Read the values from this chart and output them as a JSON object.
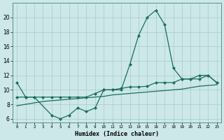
{
  "xlabel": "Humidex (Indice chaleur)",
  "background_color": "#cce8e8",
  "grid_color": "#aacaca",
  "line_color": "#1a6e5e",
  "x_values": [
    0,
    1,
    2,
    3,
    4,
    5,
    6,
    7,
    8,
    9,
    10,
    11,
    12,
    13,
    14,
    15,
    16,
    17,
    18,
    19,
    20,
    21,
    22,
    23
  ],
  "line1_y": [
    11,
    9,
    9,
    null,
    6.5,
    6.0,
    6.5,
    7.5,
    7.0,
    7.5,
    10.0,
    10.0,
    10.0,
    13.5,
    17.5,
    20.0,
    21.0,
    19.0,
    13.0,
    11.5,
    11.5,
    12.0,
    12.0,
    11.0
  ],
  "line2_y": [
    9.0,
    9.0,
    9.0,
    9.0,
    9.0,
    9.0,
    9.0,
    9.0,
    9.0,
    9.5,
    10.0,
    10.0,
    10.2,
    10.4,
    10.4,
    10.5,
    11.0,
    11.0,
    11.0,
    11.5,
    11.5,
    11.5,
    12.0,
    11.0
  ],
  "line3_y": [
    7.8,
    8.0,
    8.2,
    8.4,
    8.5,
    8.6,
    8.7,
    8.8,
    8.9,
    9.0,
    9.1,
    9.3,
    9.4,
    9.5,
    9.6,
    9.7,
    9.8,
    9.9,
    10.0,
    10.1,
    10.3,
    10.5,
    10.6,
    10.7
  ],
  "ylim": [
    5.5,
    22.0
  ],
  "xlim": [
    -0.5,
    23.5
  ],
  "yticks": [
    6,
    8,
    10,
    12,
    14,
    16,
    18,
    20
  ],
  "xticks": [
    0,
    1,
    2,
    3,
    4,
    5,
    6,
    7,
    8,
    9,
    10,
    11,
    12,
    13,
    14,
    15,
    16,
    17,
    18,
    19,
    20,
    21,
    22,
    23
  ],
  "marker_size": 2.5,
  "line_width": 0.9
}
